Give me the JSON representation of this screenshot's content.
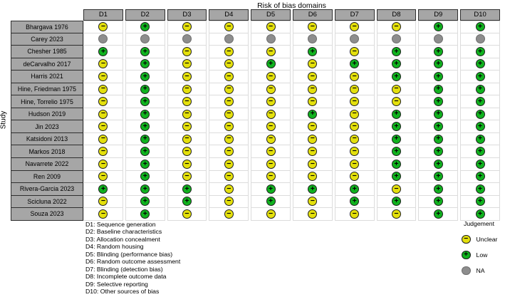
{
  "chart_data": {
    "type": "heatmap",
    "title": "Risk of bias domains",
    "ylabel": "Study",
    "x_categories": [
      "D1",
      "D2",
      "D3",
      "D4",
      "D5",
      "D6",
      "D7",
      "D8",
      "D9",
      "D10"
    ],
    "studies": [
      "Bhargava 1976",
      "Carey 2023",
      "Chesher 1985",
      "deCarvalho 2017",
      "Harris 2021",
      "Hine, Friedman 1975",
      "Hine, Torrelio 1975",
      "Hudson 2019",
      "Jin 2023",
      "Katsidoni 2013",
      "Markos 2018",
      "Navarrete 2022",
      "Ren 2009",
      "Rivera-Garcia 2023",
      "Scicluna 2022",
      "Souza 2023"
    ],
    "values": [
      [
        "Unclear",
        "Low",
        "Unclear",
        "Unclear",
        "Unclear",
        "Unclear",
        "Unclear",
        "Unclear",
        "Low",
        "Low"
      ],
      [
        "NA",
        "NA",
        "NA",
        "NA",
        "NA",
        "NA",
        "NA",
        "NA",
        "NA",
        "NA"
      ],
      [
        "Low",
        "Low",
        "Unclear",
        "Unclear",
        "Unclear",
        "Low",
        "Unclear",
        "Low",
        "Low",
        "Low"
      ],
      [
        "Unclear",
        "Low",
        "Unclear",
        "Unclear",
        "Low",
        "Unclear",
        "Low",
        "Low",
        "Low",
        "Low"
      ],
      [
        "Unclear",
        "Low",
        "Unclear",
        "Unclear",
        "Unclear",
        "Unclear",
        "Unclear",
        "Low",
        "Low",
        "Low"
      ],
      [
        "Unclear",
        "Low",
        "Unclear",
        "Unclear",
        "Unclear",
        "Unclear",
        "Unclear",
        "Unclear",
        "Low",
        "Low"
      ],
      [
        "Unclear",
        "Low",
        "Unclear",
        "Unclear",
        "Unclear",
        "Unclear",
        "Unclear",
        "Unclear",
        "Low",
        "Low"
      ],
      [
        "Unclear",
        "Low",
        "Unclear",
        "Unclear",
        "Unclear",
        "Low",
        "Unclear",
        "Low",
        "Low",
        "Low"
      ],
      [
        "Unclear",
        "Low",
        "Unclear",
        "Unclear",
        "Unclear",
        "Unclear",
        "Unclear",
        "Low",
        "Low",
        "Low"
      ],
      [
        "Unclear",
        "Low",
        "Unclear",
        "Unclear",
        "Unclear",
        "Unclear",
        "Unclear",
        "Low",
        "Low",
        "Low"
      ],
      [
        "Unclear",
        "Low",
        "Unclear",
        "Unclear",
        "Unclear",
        "Unclear",
        "Unclear",
        "Low",
        "Low",
        "Low"
      ],
      [
        "Unclear",
        "Low",
        "Unclear",
        "Unclear",
        "Unclear",
        "Unclear",
        "Unclear",
        "Low",
        "Low",
        "Low"
      ],
      [
        "Unclear",
        "Low",
        "Unclear",
        "Unclear",
        "Unclear",
        "Unclear",
        "Unclear",
        "Low",
        "Low",
        "Low"
      ],
      [
        "Low",
        "Low",
        "Low",
        "Unclear",
        "Low",
        "Low",
        "Low",
        "Unclear",
        "Low",
        "Low"
      ],
      [
        "Unclear",
        "Low",
        "Low",
        "Unclear",
        "Low",
        "Unclear",
        "Low",
        "Low",
        "Low",
        "Low"
      ],
      [
        "Unclear",
        "Low",
        "Unclear",
        "Unclear",
        "Unclear",
        "Unclear",
        "Unclear",
        "Unclear",
        "Low",
        "Low"
      ]
    ],
    "legend_position": "bottom-right"
  },
  "judgements": {
    "Unclear": {
      "label": "Unclear",
      "color": "#e4e00c",
      "symbol": "−",
      "stroke": "#1f1f1f"
    },
    "Low": {
      "label": "Low",
      "color": "#10b21e",
      "symbol": "+",
      "stroke": "#1f1f1f"
    },
    "NA": {
      "label": "NA",
      "color": "#8d8d8d",
      "symbol": "",
      "stroke": "#6e6e6e"
    }
  },
  "legend": {
    "title": "Judgement",
    "items": [
      "Unclear",
      "Low",
      "NA"
    ]
  },
  "footnotes": [
    "D1: Sequence generation",
    "D2: Baseline characteristics",
    "D3: Allocation concealment",
    "D4: Random housing",
    "D5: Blinding (performance bias)",
    "D6: Random outcome assessment",
    "D7: Blinding (detection bias)",
    "D8: Incomplete outcome data",
    "D9: Selective reporting",
    "D10: Other sources of bias"
  ],
  "colors": {
    "header_fill": "#a6a6a6",
    "header_border": "#2f2f2f",
    "cell_border": "#dcdcdc",
    "background": "#ffffff"
  }
}
